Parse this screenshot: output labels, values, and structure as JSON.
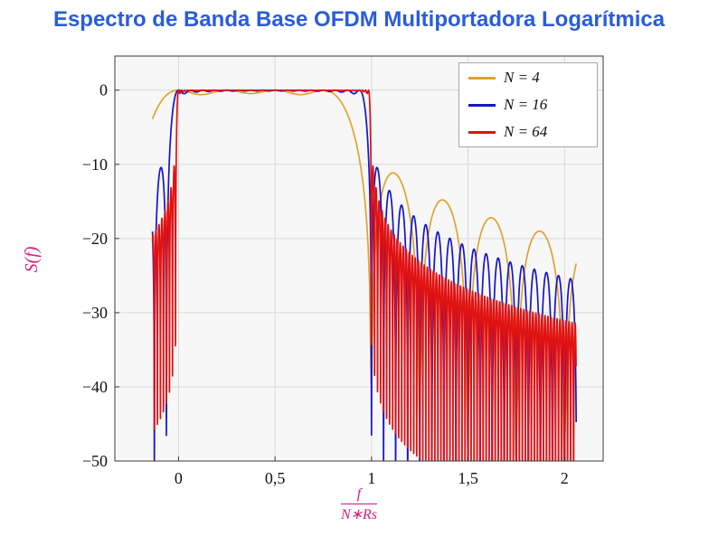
{
  "title": {
    "text": "Espectro de Banda Base OFDM Multiportadora Logarítmica",
    "color": "#2a5cdb"
  },
  "chart_data": {
    "type": "line",
    "title": "Espectro de Banda Base OFDM Multiportadora Logarítmica",
    "ylabel": "S(f)",
    "xlabel": "f/(N∗Rs)",
    "xlabel_numerator": "f",
    "xlabel_denominator": "N∗Rs",
    "axis_label_color": "#d81b7b",
    "xlim": [
      -0.33,
      2.2
    ],
    "ylim": [
      -50,
      4.6
    ],
    "x_ticks": [
      {
        "value": 0,
        "label": "0"
      },
      {
        "value": 0.5,
        "label": "0,5"
      },
      {
        "value": 1,
        "label": "1"
      },
      {
        "value": 1.5,
        "label": "1,5"
      },
      {
        "value": 2,
        "label": "2"
      }
    ],
    "y_ticks": [
      {
        "value": 0,
        "label": "0"
      },
      {
        "value": -10,
        "label": "−10"
      },
      {
        "value": -20,
        "label": "−20"
      },
      {
        "value": -30,
        "label": "−30"
      },
      {
        "value": -40,
        "label": "−40"
      },
      {
        "value": -50,
        "label": "−50"
      }
    ],
    "grid": true,
    "legend_position": "top-right",
    "plot_bg": "#f7f7f7",
    "grid_color": "#d9d9d9",
    "frame_color": "#3a3a3a",
    "tick_label_color": "#111111",
    "series": [
      {
        "name": "N = 4",
        "N": 4,
        "color": "#e0a32e",
        "model": "ofdm_power_spectrum_db",
        "formula": "S(x) = 10*log10( sum_{k=0}^{N-1} sinc^2(N*x - k) ),  sinc(t) = sin(pi*t)/(pi*t),  x = f/(N*Rs)",
        "x_domain": [
          -0.135,
          2.06
        ],
        "samples_per_carrier": 32
      },
      {
        "name": "N = 16",
        "N": 16,
        "color": "#1414cc",
        "model": "ofdm_power_spectrum_db",
        "formula": "S(x) = 10*log10( sum_{k=0}^{N-1} sinc^2(N*x - k) ),  sinc(t) = sin(pi*t)/(pi*t),  x = f/(N*Rs)",
        "x_domain": [
          -0.135,
          2.06
        ],
        "samples_per_carrier": 32
      },
      {
        "name": "N = 64",
        "N": 64,
        "color": "#e01212",
        "model": "ofdm_power_spectrum_db",
        "formula": "S(x) = 10*log10( sum_{k=0}^{N-1} sinc^2(N*x - k) ),  sinc(t) = sin(pi*t)/(pi*t),  x = f/(N*Rs)",
        "x_domain": [
          -0.135,
          2.06
        ],
        "samples_per_carrier": 32
      }
    ]
  }
}
